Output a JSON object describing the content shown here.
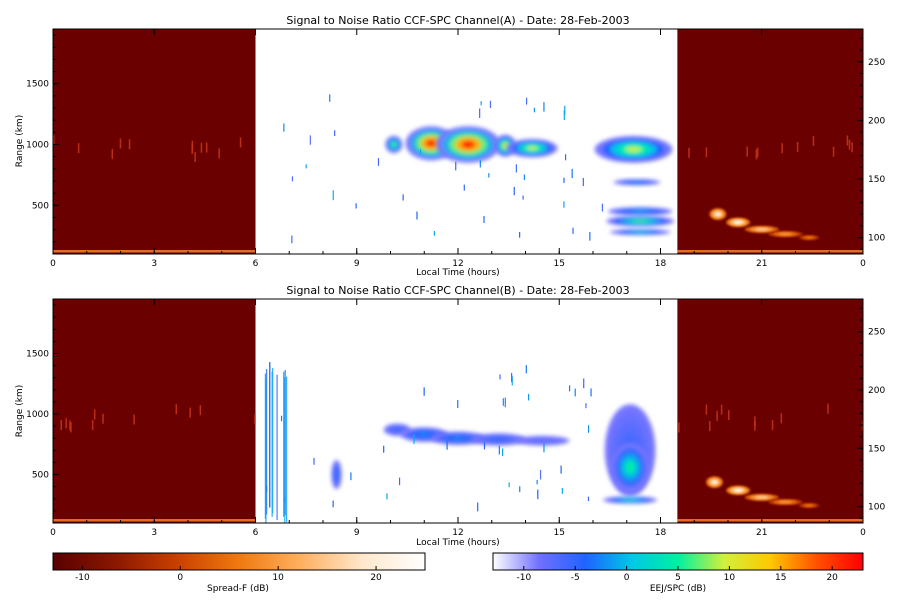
{
  "chart_data": [
    {
      "type": "heatmap",
      "title": "Signal to Noise Ratio CCF-SPC Channel(A) - Date: 28-Feb-2003",
      "xlabel": "Local Time (hours)",
      "ylabel": "Range (km)",
      "xticks": [
        "0",
        "3",
        "6",
        "9",
        "12",
        "15",
        "18",
        "21",
        "0"
      ],
      "xlim": [
        0,
        24
      ],
      "yticks": [
        500,
        1000,
        1500
      ],
      "ylim": [
        100,
        1950
      ],
      "y2ticks": [
        100,
        150,
        200,
        250
      ],
      "y2lim": [
        86,
        278
      ],
      "night_segments": [
        [
          0,
          6
        ],
        [
          18.5,
          24
        ]
      ],
      "clouds": [
        {
          "t": 10.1,
          "r": 1000,
          "dt": 0.25,
          "dr": 70,
          "level": 0.55
        },
        {
          "t": 11.2,
          "r": 1010,
          "dt": 0.75,
          "dr": 140,
          "level": 1.0
        },
        {
          "t": 12.3,
          "r": 1000,
          "dt": 0.95,
          "dr": 150,
          "level": 1.0
        },
        {
          "t": 13.4,
          "r": 990,
          "dt": 0.32,
          "dr": 90,
          "level": 0.7
        },
        {
          "t": 14.2,
          "r": 970,
          "dt": 0.75,
          "dr": 75,
          "level": 0.62
        },
        {
          "t": 17.2,
          "r": 960,
          "dt": 1.15,
          "dr": 110,
          "level": 0.62
        },
        {
          "t": 17.3,
          "r": 690,
          "dt": 0.7,
          "dr": 25,
          "level": 0.3
        },
        {
          "t": 17.4,
          "r": 450,
          "dt": 0.95,
          "dr": 35,
          "level": 0.35
        },
        {
          "t": 17.4,
          "r": 370,
          "dt": 1.0,
          "dr": 45,
          "level": 0.55
        },
        {
          "t": 17.4,
          "r": 280,
          "dt": 0.9,
          "dr": 25,
          "level": 0.4
        }
      ],
      "spread_f": [
        {
          "t": 19.7,
          "alt": 120,
          "dt": 0.25,
          "dh": 5,
          "level": 0.85
        },
        {
          "t": 20.3,
          "alt": 113,
          "dt": 0.35,
          "dh": 4,
          "level": 0.9
        },
        {
          "t": 21.0,
          "alt": 107,
          "dt": 0.5,
          "dh": 3,
          "level": 0.75
        },
        {
          "t": 21.7,
          "alt": 103,
          "dt": 0.5,
          "dh": 2.5,
          "level": 0.6
        },
        {
          "t": 22.4,
          "alt": 100,
          "dt": 0.3,
          "dh": 2,
          "level": 0.5
        }
      ]
    },
    {
      "type": "heatmap",
      "title": "Signal to Noise Ratio CCF-SPC Channel(B) - Date: 28-Feb-2003",
      "xlabel": "Local Time (hours)",
      "ylabel": "Range (km)",
      "xticks": [
        "0",
        "3",
        "6",
        "9",
        "12",
        "15",
        "18",
        "21",
        "0"
      ],
      "xlim": [
        0,
        24
      ],
      "yticks": [
        500,
        1000,
        1500
      ],
      "ylim": [
        100,
        1950
      ],
      "y2ticks": [
        100,
        150,
        200,
        250
      ],
      "y2lim": [
        86,
        278
      ],
      "night_segments": [
        [
          0,
          6
        ],
        [
          18.5,
          24
        ]
      ],
      "clouds": [
        {
          "t": 8.4,
          "r": 500,
          "dt": 0.15,
          "dr": 120,
          "level": 0.25
        },
        {
          "t": 10.2,
          "r": 870,
          "dt": 0.4,
          "dr": 50,
          "level": 0.2
        },
        {
          "t": 11.0,
          "r": 830,
          "dt": 0.7,
          "dr": 60,
          "level": 0.3
        },
        {
          "t": 12.0,
          "r": 800,
          "dt": 0.8,
          "dr": 55,
          "level": 0.3
        },
        {
          "t": 13.2,
          "r": 790,
          "dt": 0.8,
          "dr": 50,
          "level": 0.22
        },
        {
          "t": 14.5,
          "r": 780,
          "dt": 0.8,
          "dr": 40,
          "level": 0.15
        },
        {
          "t": 17.1,
          "r": 700,
          "dt": 0.75,
          "dr": 380,
          "level": 0.2
        },
        {
          "t": 17.1,
          "r": 560,
          "dt": 0.55,
          "dr": 200,
          "level": 0.5
        },
        {
          "t": 17.1,
          "r": 290,
          "dt": 0.8,
          "dr": 30,
          "level": 0.45
        }
      ],
      "spread_f": [
        {
          "t": 19.6,
          "alt": 121,
          "dt": 0.25,
          "dh": 5,
          "level": 0.85
        },
        {
          "t": 20.3,
          "alt": 114,
          "dt": 0.35,
          "dh": 4,
          "level": 0.9
        },
        {
          "t": 21.0,
          "alt": 108,
          "dt": 0.5,
          "dh": 3,
          "level": 0.75
        },
        {
          "t": 21.7,
          "alt": 104,
          "dt": 0.5,
          "dh": 2.5,
          "level": 0.6
        },
        {
          "t": 22.4,
          "alt": 101,
          "dt": 0.3,
          "dh": 2,
          "level": 0.5
        }
      ]
    }
  ],
  "colorbars": [
    {
      "label": "Spread-F (dB)",
      "ticks": [
        "-10",
        "0",
        "10",
        "20"
      ],
      "range": [
        -13,
        25
      ],
      "stops": [
        "#5a0000",
        "#8a1800",
        "#c84000",
        "#ee7a10",
        "#ffb060",
        "#ffe8cc",
        "#ffffff"
      ]
    },
    {
      "label": "EEJ/SPC (dB)",
      "ticks": [
        "-10",
        "-5",
        "0",
        "5",
        "10",
        "15",
        "20"
      ],
      "range": [
        -13,
        23
      ],
      "stops": [
        "#ffffff",
        "#7070ff",
        "#1e64ff",
        "#00c8e6",
        "#00f0a0",
        "#d2f03c",
        "#ffc800",
        "#ff5000",
        "#ff0000"
      ]
    }
  ],
  "colors": {
    "night": "#6b0000",
    "frame": "#000000"
  }
}
